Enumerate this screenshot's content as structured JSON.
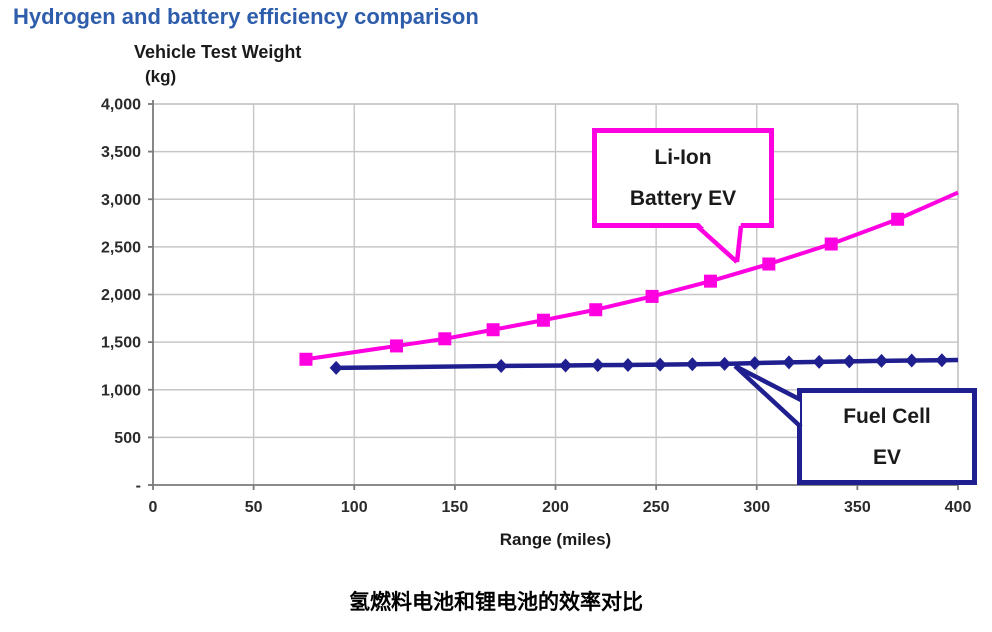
{
  "page": {
    "title": "Hydrogen and battery efficiency comparison",
    "caption": "氢燃料电池和锂电池的效率对比"
  },
  "colors": {
    "title_blue": "#2E5DAC",
    "li_ion_magenta": "#FF00E1",
    "fuel_cell_navy": "#1F1F8F",
    "gridline_gray": "#C6C6C6",
    "axis_gray": "#7A7A7A",
    "text_black": "#1A1A1A"
  },
  "callouts": {
    "li_ion": {
      "line1": "Li-Ion",
      "line2": "Battery EV"
    },
    "fuel_cell": {
      "line1": "Fuel Cell",
      "line2": "EV"
    }
  },
  "chart_data": {
    "type": "line",
    "title": "Hydrogen and battery efficiency comparison",
    "xlabel": "Range (miles)",
    "ylabel": "Vehicle Test Weight",
    "ylabel_unit": "(kg)",
    "xlim": [
      0,
      400
    ],
    "ylim": [
      0,
      4000
    ],
    "grid": true,
    "x_ticks": [
      0,
      50,
      100,
      150,
      200,
      250,
      300,
      350,
      400
    ],
    "x_tick_labels": [
      "0",
      "50",
      "100",
      "150",
      "200",
      "250",
      "300",
      "350",
      "400"
    ],
    "y_ticks": [
      0,
      500,
      1000,
      1500,
      2000,
      2500,
      3000,
      3500,
      4000
    ],
    "y_tick_labels": [
      "-",
      "500",
      "1,000",
      "1,500",
      "2,000",
      "2,500",
      "3,000",
      "3,500",
      "4,000"
    ],
    "series": [
      {
        "name": "Li-Ion Battery EV",
        "color": "#FF00E1",
        "marker": "square",
        "marker_size": 13,
        "line_width": 4,
        "points": [
          [
            76,
            1320
          ],
          [
            121,
            1460
          ],
          [
            145,
            1535
          ],
          [
            169,
            1630
          ],
          [
            194,
            1730
          ],
          [
            220,
            1840
          ],
          [
            248,
            1980
          ],
          [
            277,
            2140
          ],
          [
            306,
            2320
          ],
          [
            337,
            2530
          ],
          [
            370,
            2790
          ]
        ],
        "line_end": [
          400,
          3070
        ]
      },
      {
        "name": "Fuel Cell EV",
        "color": "#1F1F8F",
        "marker": "diamond",
        "marker_size": 14,
        "line_width": 4.5,
        "points": [
          [
            91,
            1230
          ],
          [
            173,
            1250
          ],
          [
            205,
            1255
          ],
          [
            221,
            1258
          ],
          [
            236,
            1260
          ],
          [
            252,
            1264
          ],
          [
            268,
            1268
          ],
          [
            284,
            1272
          ],
          [
            299,
            1280
          ],
          [
            316,
            1288
          ],
          [
            331,
            1293
          ],
          [
            346,
            1298
          ],
          [
            362,
            1303
          ],
          [
            377,
            1307
          ],
          [
            392,
            1310
          ]
        ],
        "line_end": [
          400,
          1312
        ]
      }
    ],
    "annotations": [
      {
        "target_series": "Li-Ion Battery EV",
        "text": "Li-Ion Battery EV",
        "box_color": "#FF00E1",
        "pointer_tip_data": [
          291,
          2350
        ]
      },
      {
        "target_series": "Fuel Cell EV",
        "text": "Fuel Cell EV",
        "box_color": "#1F1F8F",
        "pointer_tip_data": [
          289,
          1255
        ]
      }
    ]
  }
}
